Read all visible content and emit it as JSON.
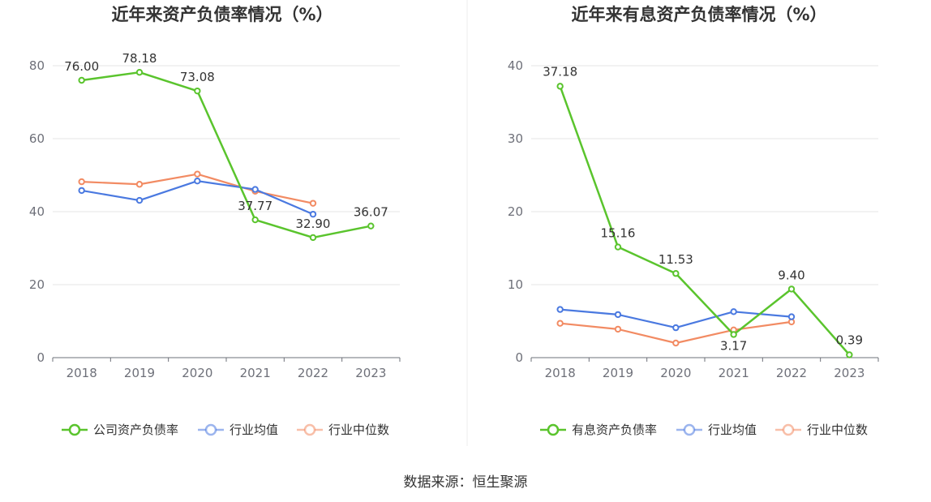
{
  "source": "数据来源：恒生聚源",
  "chart_data": [
    {
      "type": "line",
      "title": "近年来资产负债率情况（%）",
      "categories": [
        "2018",
        "2019",
        "2020",
        "2021",
        "2022",
        "2023"
      ],
      "ylim": [
        0,
        80
      ],
      "yticks": [
        0,
        20,
        40,
        60,
        80
      ],
      "grid": true,
      "legend_position": "bottom",
      "series": [
        {
          "name": "公司资产负债率",
          "color": "#5ac42d",
          "values": [
            76.0,
            78.18,
            73.08,
            37.77,
            32.9,
            36.07
          ],
          "labels": [
            "76.00",
            "78.18",
            "73.08",
            "37.77",
            "32.90",
            "36.07"
          ]
        },
        {
          "name": "行业均值",
          "color": "#4a79e0",
          "values": [
            45.8,
            43.1,
            48.4,
            46.1,
            39.3,
            null
          ]
        },
        {
          "name": "行业中位数",
          "color": "#f28b63",
          "values": [
            48.2,
            47.5,
            50.3,
            45.6,
            42.3,
            null
          ]
        }
      ]
    },
    {
      "type": "line",
      "title": "近年来有息资产负债率情况（%）",
      "categories": [
        "2018",
        "2019",
        "2020",
        "2021",
        "2022",
        "2023"
      ],
      "ylim": [
        0,
        40
      ],
      "yticks": [
        0,
        10,
        20,
        30,
        40
      ],
      "grid": true,
      "legend_position": "bottom",
      "series": [
        {
          "name": "有息资产负债率",
          "color": "#5ac42d",
          "values": [
            37.18,
            15.16,
            11.53,
            3.17,
            9.4,
            0.39
          ],
          "labels": [
            "37.18",
            "15.16",
            "11.53",
            "3.17",
            "9.40",
            "0.39"
          ]
        },
        {
          "name": "行业均值",
          "color": "#4a79e0",
          "values": [
            6.6,
            5.9,
            4.1,
            6.3,
            5.6,
            null
          ]
        },
        {
          "name": "行业中位数",
          "color": "#f28b63",
          "values": [
            4.7,
            3.9,
            2.0,
            3.8,
            4.9,
            null
          ]
        }
      ]
    }
  ]
}
